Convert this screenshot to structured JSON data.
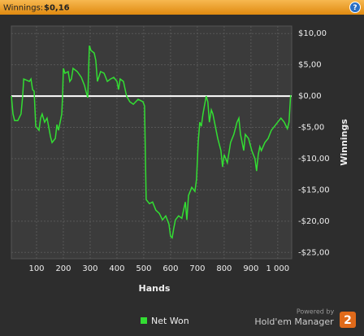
{
  "header": {
    "label": "Winnings:",
    "value": "$0,16",
    "help": "?"
  },
  "chart_data": {
    "type": "line",
    "x_label": "Hands",
    "y_label": "Winnings",
    "x": [
      6,
      12,
      18,
      30,
      42,
      48,
      52,
      73,
      79,
      85,
      91,
      97,
      109,
      115,
      121,
      130,
      139,
      145,
      152,
      158,
      170,
      176,
      182,
      188,
      194,
      197,
      200,
      206,
      218,
      224,
      230,
      236,
      252,
      267,
      279,
      285,
      291,
      297,
      303,
      315,
      321,
      327,
      339,
      352,
      364,
      376,
      388,
      400,
      406,
      412,
      424,
      436,
      448,
      461,
      479,
      497,
      503,
      509,
      521,
      533,
      545,
      558,
      570,
      582,
      594,
      600,
      606,
      612,
      618,
      630,
      642,
      655,
      661,
      667,
      679,
      691,
      697,
      703,
      709,
      715,
      721,
      733,
      739,
      745,
      752,
      758,
      764,
      770,
      776,
      788,
      794,
      800,
      812,
      824,
      836,
      848,
      855,
      861,
      873,
      879,
      891,
      903,
      915,
      921,
      927,
      933,
      939,
      952,
      964,
      976,
      988,
      1000,
      1012,
      1024,
      1036,
      1042,
      1048
    ],
    "series": [
      {
        "name": "Net Won",
        "color": "#33dd33",
        "values": [
          0,
          -2.86,
          -3.91,
          -3.91,
          -2.86,
          0,
          2.73,
          2.34,
          2.73,
          1.04,
          0.78,
          -4.82,
          -5.47,
          -3.52,
          -2.86,
          -4.17,
          -3.52,
          -4.82,
          -6.51,
          -7.42,
          -6.77,
          -4.56,
          -5.47,
          -4.17,
          -2.86,
          0,
          4.43,
          3.65,
          3.91,
          2.34,
          2.73,
          4.43,
          3.91,
          2.99,
          1.69,
          0.65,
          -0.26,
          8.07,
          7.29,
          6.9,
          5.73,
          2.34,
          3.91,
          3.65,
          2.34,
          2.73,
          2.99,
          2.34,
          1.04,
          2.73,
          2.34,
          0,
          -0.91,
          -1.3,
          -0.52,
          -0.91,
          -1.56,
          -16.54,
          -17.19,
          -16.93,
          -18.23,
          -18.75,
          -19.79,
          -19.14,
          -20.44,
          -22.4,
          -22.66,
          -21.09,
          -19.79,
          -19.14,
          -19.53,
          -16.93,
          -19.79,
          -15.89,
          -14.58,
          -15.23,
          -13.28,
          -7.42,
          -4.17,
          -4.82,
          -2.86,
          0,
          -0.91,
          -4.17,
          -2.21,
          -2.86,
          -4.17,
          -5.47,
          -6.77,
          -8.72,
          -11.33,
          -9.38,
          -10.68,
          -7.42,
          -6.12,
          -4.17,
          -3.52,
          -6.12,
          -8.72,
          -6.12,
          -6.77,
          -8.72,
          -10.03,
          -11.98,
          -9.38,
          -8.07,
          -8.72,
          -7.42,
          -6.77,
          -5.47,
          -4.82,
          -4.17,
          -3.52,
          -4.17,
          -5.21,
          -4.17,
          0.16
        ]
      }
    ],
    "xlim": [
      6,
      1052
    ],
    "xticks": [
      100,
      200,
      300,
      400,
      500,
      600,
      700,
      800,
      900,
      {
        "value": 1000,
        "label": "1 000"
      }
    ],
    "ylim": [
      -26,
      11.2
    ],
    "yticks": [
      {
        "value": 10,
        "label": "$10,00"
      },
      {
        "value": 5,
        "label": "$5,00"
      },
      {
        "value": 0,
        "label": "$0,00"
      },
      {
        "value": -5,
        "label": "-$5,00"
      },
      {
        "value": -10,
        "label": "-$10,00"
      },
      {
        "value": -15,
        "label": "-$15,00"
      },
      {
        "value": -20,
        "label": "-$20,00"
      },
      {
        "value": -25,
        "label": "-$25,00"
      }
    ],
    "grid": true,
    "legend": "bottom"
  },
  "branding": {
    "powered": "Powered by",
    "product": "Hold'em Manager",
    "badge": "2"
  }
}
